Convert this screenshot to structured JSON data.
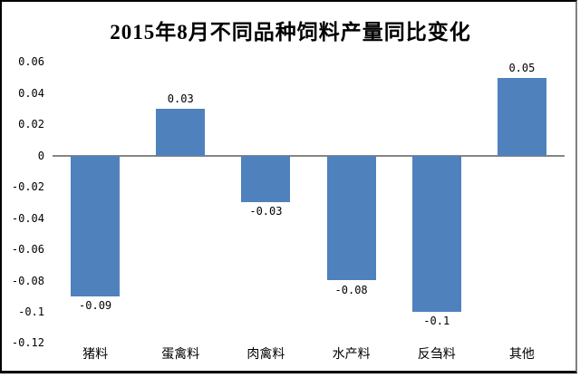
{
  "chart_data": {
    "type": "bar",
    "title": "2015年8月不同品种饲料产量同比变化",
    "categories": [
      "猪料",
      "蛋禽料",
      "肉禽料",
      "水产料",
      "反刍料",
      "其他"
    ],
    "values": [
      -0.09,
      0.03,
      -0.03,
      -0.08,
      -0.1,
      0.05
    ],
    "value_labels": [
      "-0.09",
      "0.03",
      "-0.03",
      "-0.08",
      "-0.1",
      "0.05"
    ],
    "ytick_values": [
      0.06,
      0.04,
      0.02,
      0,
      -0.02,
      -0.04,
      -0.06,
      -0.08,
      -0.1,
      -0.12
    ],
    "ytick_labels": [
      "0.06",
      "0.04",
      "0.02",
      "0",
      "-0.02",
      "-0.04",
      "-0.06",
      "-0.08",
      "-0.1",
      "-0.12"
    ],
    "ylim": [
      -0.12,
      0.06
    ],
    "xlabel": "",
    "ylabel": "",
    "grid": false,
    "legend": false,
    "data_label_position": "outside-end",
    "colors": {
      "bar": "#4f81bd",
      "zero_axis_line": "#868686",
      "text": "#000000",
      "frame_border": "#000000",
      "background": "#ffffff"
    }
  }
}
